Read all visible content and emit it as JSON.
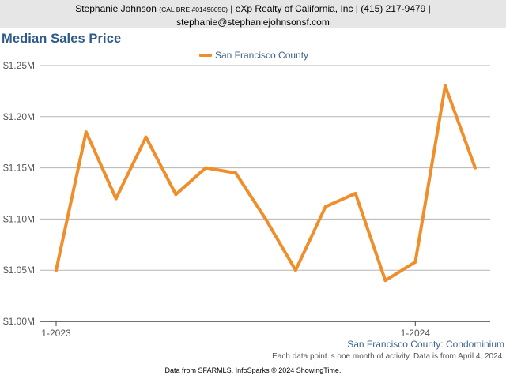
{
  "header": {
    "name": "Stephanie Johnson",
    "license": "(CAL BRE #01496050)",
    "company": "| eXp Realty of California, Inc | (415) 217-9479 |",
    "email": "stephanie@stephaniejohnsonsf.com"
  },
  "colors": {
    "line": "#ef8e2b",
    "title": "#2e5a8a",
    "grid": "#b5b5b5"
  },
  "chart_data": {
    "type": "line",
    "title": "Median Sales Price",
    "subtitle": "San Francisco County: Condominium",
    "series": [
      {
        "name": "San Francisco County",
        "values": [
          1050000,
          1185000,
          1120000,
          1180000,
          1124000,
          1150000,
          1145000,
          1100000,
          1050000,
          1112000,
          1125000,
          1040000,
          1058000,
          1230000,
          1150000
        ]
      }
    ],
    "x": [
      "1-2023",
      "2-2023",
      "3-2023",
      "4-2023",
      "5-2023",
      "6-2023",
      "7-2023",
      "8-2023",
      "9-2023",
      "10-2023",
      "11-2023",
      "12-2023",
      "1-2024",
      "2-2024",
      "3-2024"
    ],
    "x_tick_labels": [
      "1-2023",
      "1-2024"
    ],
    "y_tick_labels": [
      "$1.00M",
      "$1.05M",
      "$1.10M",
      "$1.15M",
      "$1.20M",
      "$1.25M"
    ],
    "y_ticks": [
      1000000,
      1050000,
      1100000,
      1150000,
      1200000,
      1250000
    ],
    "ylim": [
      1000000,
      1250000
    ],
    "grid": true,
    "legend": "top-center"
  },
  "footnote": "Each data point is one month of activity. Data is from April 4, 2024.",
  "source": "Data from SFARMLS. InfoSparks © 2024 ShowingTime."
}
